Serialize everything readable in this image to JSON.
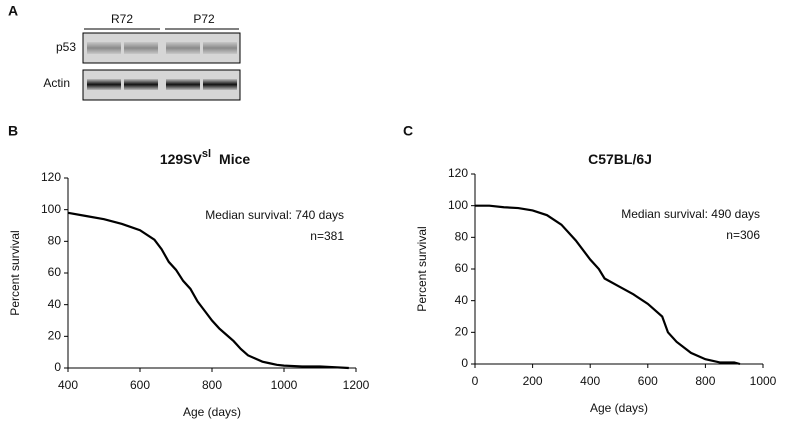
{
  "blot": {
    "panel": "A",
    "groups": [
      "R72",
      "P72"
    ],
    "rows": [
      "p53",
      "Actin"
    ]
  },
  "chart_data": [
    {
      "type": "line",
      "panel": "B",
      "title": "129SV",
      "title_superscript": "sl",
      "title_suffix": "Mice",
      "x": [
        400,
        450,
        500,
        550,
        600,
        640,
        660,
        680,
        700,
        720,
        740,
        760,
        780,
        800,
        820,
        840,
        860,
        880,
        900,
        920,
        940,
        960,
        980,
        1000,
        1050,
        1100,
        1180
      ],
      "series": [
        {
          "color": "#000000",
          "values": [
            98,
            96,
            94,
            91,
            87,
            81,
            75,
            67,
            62,
            55,
            50,
            42,
            36,
            30,
            25,
            21,
            17,
            12,
            8,
            6,
            4,
            3,
            2,
            1.5,
            1,
            1,
            0
          ]
        }
      ],
      "xlim": [
        400,
        1200
      ],
      "xticks": [
        400,
        600,
        800,
        1000,
        1200
      ],
      "ylim": [
        0,
        120
      ],
      "yticks": [
        0,
        20,
        40,
        60,
        80,
        100,
        120
      ],
      "xlabel": "Age (days)",
      "ylabel": "Percent survival",
      "annotations": [
        "Median survival: 740 days",
        "n=381"
      ]
    },
    {
      "type": "line",
      "panel": "C",
      "title": "C57BL/6J",
      "x": [
        0,
        50,
        100,
        150,
        200,
        250,
        300,
        350,
        400,
        430,
        450,
        500,
        550,
        600,
        650,
        670,
        700,
        750,
        800,
        850,
        900,
        920
      ],
      "series": [
        {
          "color": "#000000",
          "values": [
            100,
            100,
            99,
            98.5,
            97,
            94,
            88,
            78,
            66,
            60,
            54,
            49,
            44,
            38,
            30,
            20,
            14,
            7,
            3,
            1,
            1,
            0
          ]
        }
      ],
      "xlim": [
        0,
        1000
      ],
      "xticks": [
        0,
        200,
        400,
        600,
        800,
        1000
      ],
      "ylim": [
        0,
        120
      ],
      "yticks": [
        0,
        20,
        40,
        60,
        80,
        100,
        120
      ],
      "xlabel": "Age (days)",
      "ylabel": "Percent survival",
      "annotations": [
        "Median survival: 490 days",
        "n=306"
      ]
    }
  ]
}
